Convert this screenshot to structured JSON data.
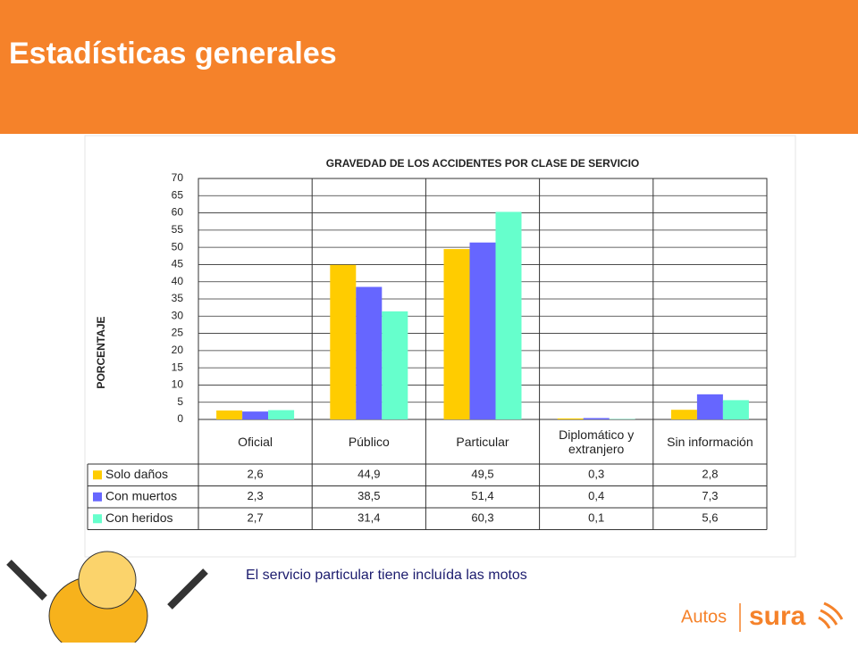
{
  "header": {
    "title": "Estadísticas generales"
  },
  "chart_data": {
    "type": "bar",
    "title": "GRAVEDAD DE LOS ACCIDENTES POR CLASE DE SERVICIO",
    "y_label": "PORCENTAJE",
    "categories": [
      "Oficial",
      "Público",
      "Particular",
      "Diplomático y extranjero",
      "Sin información"
    ],
    "series": [
      {
        "name": "Solo daños",
        "color": "#ffcc00",
        "values": [
          2.6,
          44.9,
          49.5,
          0.3,
          2.8
        ],
        "value_labels": [
          "2,6",
          "44,9",
          "49,5",
          "0,3",
          "2,8"
        ]
      },
      {
        "name": "Con muertos",
        "color": "#6666ff",
        "values": [
          2.3,
          38.5,
          51.4,
          0.4,
          7.3
        ],
        "value_labels": [
          "2,3",
          "38,5",
          "51,4",
          "0,4",
          "7,3"
        ]
      },
      {
        "name": "Con heridos",
        "color": "#66ffcc",
        "values": [
          2.7,
          31.4,
          60.3,
          0.1,
          5.6
        ],
        "value_labels": [
          "2,7",
          "31,4",
          "60,3",
          "0,1",
          "5,6"
        ]
      }
    ],
    "ylim": [
      0,
      70
    ],
    "yticks": [
      0,
      5,
      10,
      15,
      20,
      25,
      30,
      35,
      40,
      45,
      50,
      55,
      60,
      65,
      70
    ],
    "grid": true
  },
  "footnote": "El servicio particular tiene incluída las motos",
  "logo": {
    "label": "Autos",
    "brand": "sura"
  }
}
